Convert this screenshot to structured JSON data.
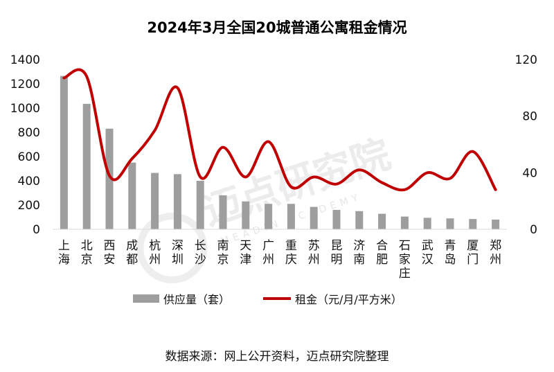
{
  "chart_data": {
    "type": "bar",
    "title": "2024年3月全国20城普通公寓租金情况",
    "categories": [
      "上海",
      "北京",
      "西安",
      "成都",
      "杭州",
      "深圳",
      "长沙",
      "南京",
      "天津",
      "广州",
      "重庆",
      "苏州",
      "昆明",
      "济南",
      "合肥",
      "石家庄",
      "武汉",
      "青岛",
      "厦门",
      "郑州"
    ],
    "series": [
      {
        "name": "供应量（套）",
        "type": "bar",
        "axis": "left",
        "color": "#9e9e9e",
        "values": [
          1265,
          1035,
          830,
          550,
          465,
          455,
          400,
          280,
          230,
          210,
          210,
          185,
          160,
          150,
          128,
          105,
          95,
          90,
          85,
          80
        ]
      },
      {
        "name": "租金（元/月/平方米）",
        "type": "line",
        "axis": "right",
        "color": "#c00000",
        "values": [
          107,
          108,
          38,
          50,
          70,
          100,
          37,
          58,
          37,
          62,
          30,
          37,
          32,
          42,
          33,
          28,
          40,
          36,
          55,
          28
        ]
      }
    ],
    "yleft": {
      "lim": [
        0,
        1400
      ],
      "ticks": [
        "0",
        "200",
        "400",
        "600",
        "800",
        "1000",
        "1200",
        "1400"
      ]
    },
    "yright": {
      "lim": [
        0,
        120
      ],
      "ticks": [
        "0",
        "40",
        "80",
        "120"
      ]
    },
    "grid": false,
    "legend": "bottom"
  },
  "source_note": "数据来源：网上公开资料，迈点研究院整理",
  "watermark": {
    "name": "迈点研究院",
    "sub": "MEADIN ACADEMY"
  }
}
